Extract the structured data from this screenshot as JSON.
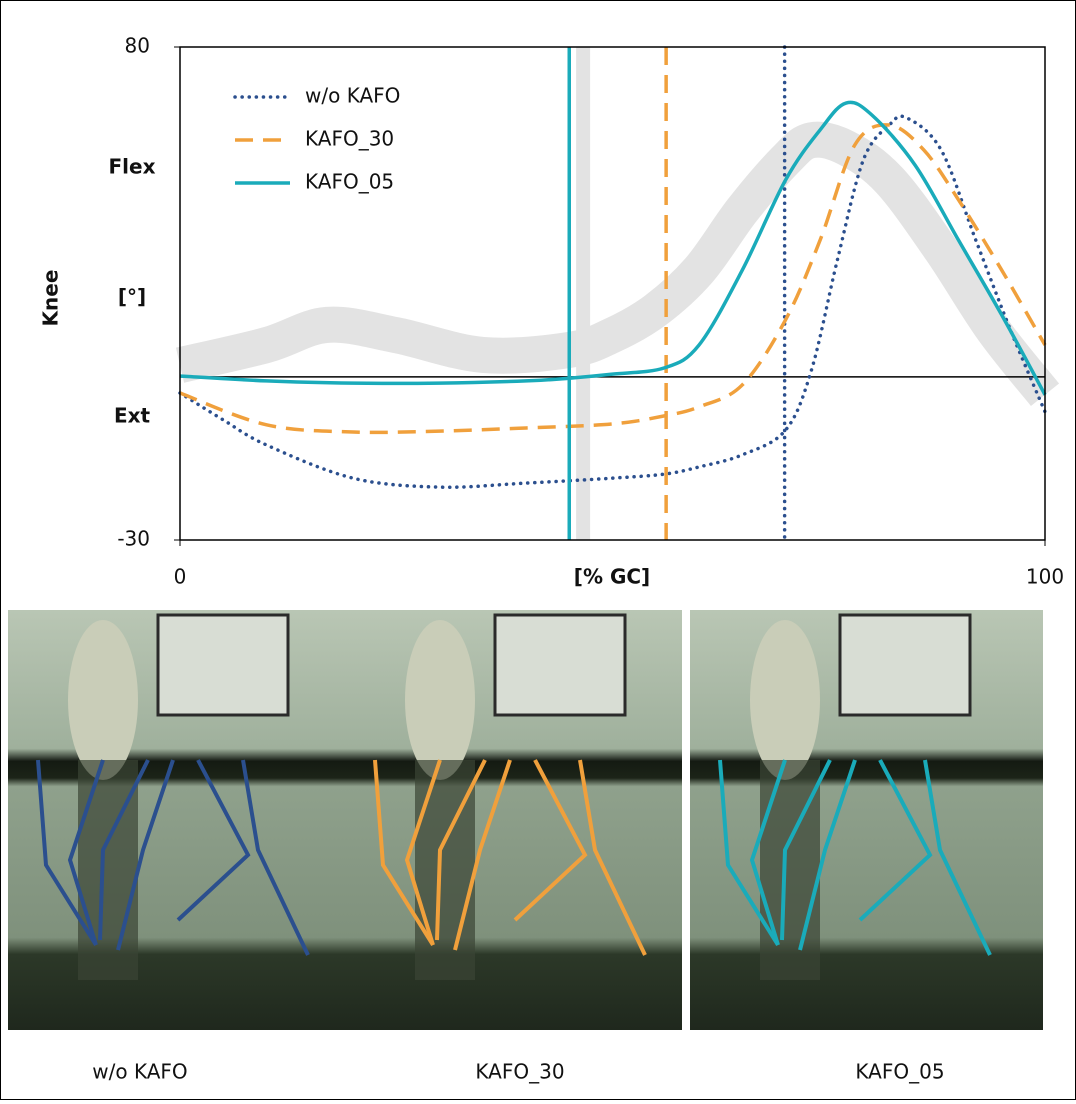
{
  "chart_data": {
    "type": "line",
    "ylabel": "Knee",
    "xlabel": "[% GC]",
    "y_annotations": [
      "Flex",
      "[°]",
      "Ext"
    ],
    "xlim": [
      0,
      100
    ],
    "xticks": [
      0,
      100
    ],
    "ylim": [
      -30,
      80
    ],
    "yticks": [
      -30,
      80
    ],
    "hline": 6.4,
    "reference_band": {
      "color": "#e3e3e3",
      "x": [
        0,
        10,
        17,
        25,
        35,
        45,
        50,
        55,
        60,
        65,
        70,
        73,
        77,
        82,
        88,
        94,
        100
      ],
      "values": [
        9.0,
        13.5,
        18.0,
        15.7,
        11.3,
        12.4,
        15.7,
        21.3,
        30.2,
        43.6,
        54.8,
        59.2,
        57.5,
        50.3,
        34.7,
        16.9,
        2.4
      ],
      "vline": 46.6
    },
    "series": [
      {
        "name": "w/o KAFO",
        "color": "#2b4f8e",
        "style": "dotted",
        "toe_off": 69.9,
        "x": [
          0,
          5,
          10,
          20,
          30,
          40,
          50,
          56,
          60,
          65,
          70,
          73,
          76,
          79,
          82,
          84,
          88,
          92,
          96,
          100
        ],
        "values": [
          2.8,
          -3.2,
          -8.8,
          -16.2,
          -18.2,
          -17.3,
          -16.2,
          -15.3,
          -13.7,
          -11.0,
          -5.5,
          7.9,
          32.5,
          54.8,
          62.6,
          64.2,
          57.0,
          36.9,
          16.9,
          -1.4
        ]
      },
      {
        "name": "KAFO_30",
        "color": "#f0a03c",
        "style": "dashed",
        "toe_off": 56.2,
        "x": [
          0,
          10,
          20,
          30,
          40,
          50,
          56,
          60,
          65,
          70,
          74,
          78,
          82,
          86,
          90,
          95,
          100
        ],
        "values": [
          2.8,
          -4.3,
          -5.9,
          -5.7,
          -5.0,
          -4.1,
          -2.3,
          -0.3,
          4.6,
          19.1,
          36.9,
          58.1,
          62.6,
          57.0,
          45.9,
          30.2,
          13.5
        ]
      },
      {
        "name": "KAFO_05",
        "color": "#1aabba",
        "style": "solid",
        "toe_off": 45.0,
        "x": [
          0,
          10,
          20,
          30,
          40,
          45,
          50,
          56,
          60,
          65,
          70,
          74,
          77,
          80,
          85,
          90,
          95,
          100
        ],
        "values": [
          6.6,
          5.5,
          5.0,
          5.0,
          5.5,
          6.1,
          7.0,
          8.4,
          13.5,
          30.2,
          50.3,
          61.5,
          67.5,
          64.8,
          53.6,
          36.9,
          20.2,
          2.4
        ]
      }
    ]
  },
  "photos": {
    "captions": [
      "w/o KAFO",
      "KAFO_30",
      "KAFO_05"
    ]
  }
}
